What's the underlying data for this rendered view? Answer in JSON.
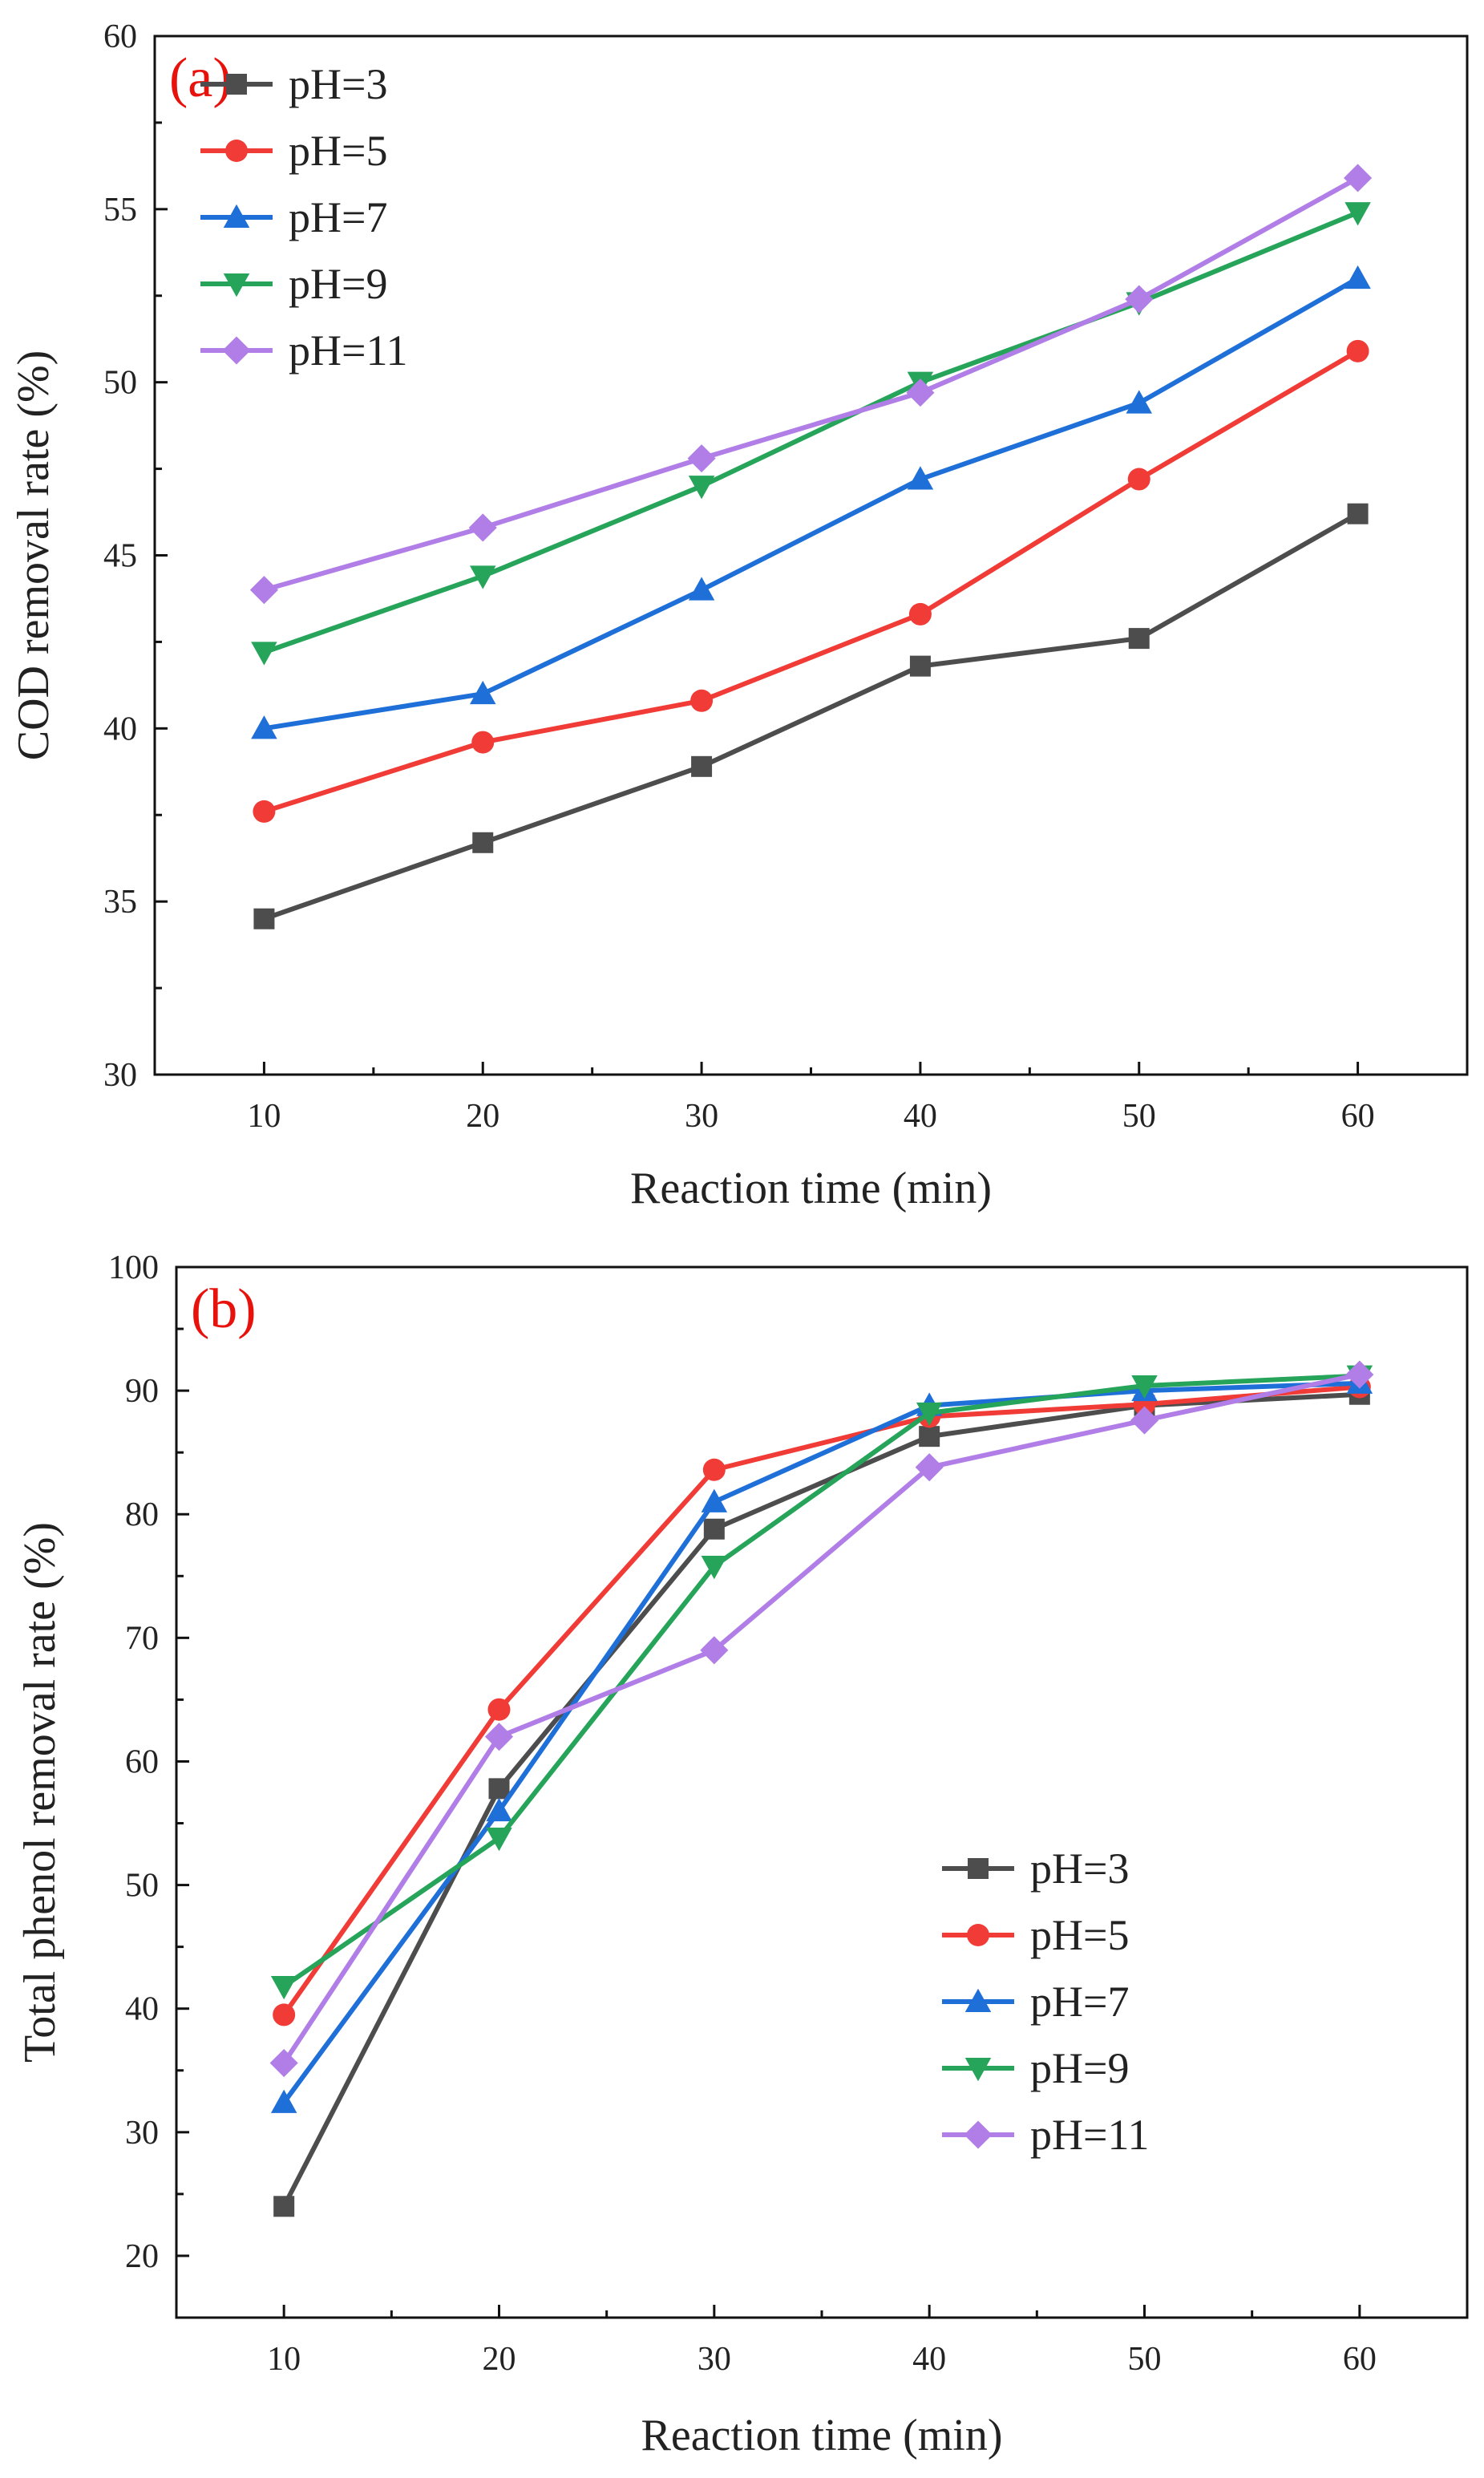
{
  "chart_data": [
    {
      "type": "line",
      "panel_label": "(a)",
      "xlabel": "Reaction time (min)",
      "ylabel": "COD removal rate (%)",
      "xlim": [
        5,
        65
      ],
      "ylim": [
        30,
        60
      ],
      "xticks": [
        10,
        20,
        30,
        40,
        50,
        60
      ],
      "yticks": [
        30,
        35,
        40,
        45,
        50,
        55,
        60
      ],
      "legend_position": "top-left",
      "grid": false,
      "x": [
        10,
        20,
        30,
        40,
        50,
        60
      ],
      "series": [
        {
          "name": "pH=3",
          "color": "#4d4d4d",
          "marker": "square",
          "values": [
            34.5,
            36.7,
            38.9,
            41.8,
            42.6,
            46.2
          ]
        },
        {
          "name": "pH=5",
          "color": "#f03b36",
          "marker": "circle",
          "values": [
            37.6,
            39.6,
            40.8,
            43.3,
            47.2,
            50.9
          ]
        },
        {
          "name": "pH=7",
          "color": "#1f6fd8",
          "marker": "triangle-up",
          "values": [
            40.0,
            41.0,
            44.0,
            47.2,
            49.4,
            53.0
          ]
        },
        {
          "name": "pH=9",
          "color": "#26a45a",
          "marker": "triangle-down",
          "values": [
            42.2,
            44.4,
            47.0,
            50.0,
            52.3,
            54.9
          ]
        },
        {
          "name": "pH=11",
          "color": "#b07ee6",
          "marker": "diamond",
          "values": [
            44.0,
            45.8,
            47.8,
            49.7,
            52.4,
            55.9
          ]
        }
      ]
    },
    {
      "type": "line",
      "panel_label": "(b)",
      "xlabel": "Reaction time  (min)",
      "ylabel": "Total phenol removal rate (%)",
      "xlim": [
        5,
        65
      ],
      "ylim": [
        15,
        100
      ],
      "xticks": [
        10,
        20,
        30,
        40,
        50,
        60
      ],
      "yticks": [
        20,
        30,
        40,
        50,
        60,
        70,
        80,
        90,
        100
      ],
      "legend_position": "bottom-right",
      "grid": false,
      "x": [
        10,
        20,
        30,
        40,
        50,
        60
      ],
      "series": [
        {
          "name": "pH=3",
          "color": "#4d4d4d",
          "marker": "square",
          "values": [
            24.0,
            57.8,
            78.8,
            86.3,
            88.8,
            89.7
          ]
        },
        {
          "name": "pH=5",
          "color": "#f03b36",
          "marker": "circle",
          "values": [
            39.5,
            64.2,
            83.6,
            87.9,
            88.9,
            90.3
          ]
        },
        {
          "name": "pH=7",
          "color": "#1f6fd8",
          "marker": "triangle-up",
          "values": [
            32.4,
            56.0,
            81.0,
            88.8,
            90.0,
            90.6
          ]
        },
        {
          "name": "pH=9",
          "color": "#26a45a",
          "marker": "triangle-down",
          "values": [
            41.8,
            53.8,
            75.8,
            88.2,
            90.4,
            91.2
          ]
        },
        {
          "name": "pH=11",
          "color": "#b07ee6",
          "marker": "diamond",
          "values": [
            35.6,
            62.0,
            69.0,
            83.8,
            87.6,
            91.3
          ]
        }
      ]
    }
  ]
}
